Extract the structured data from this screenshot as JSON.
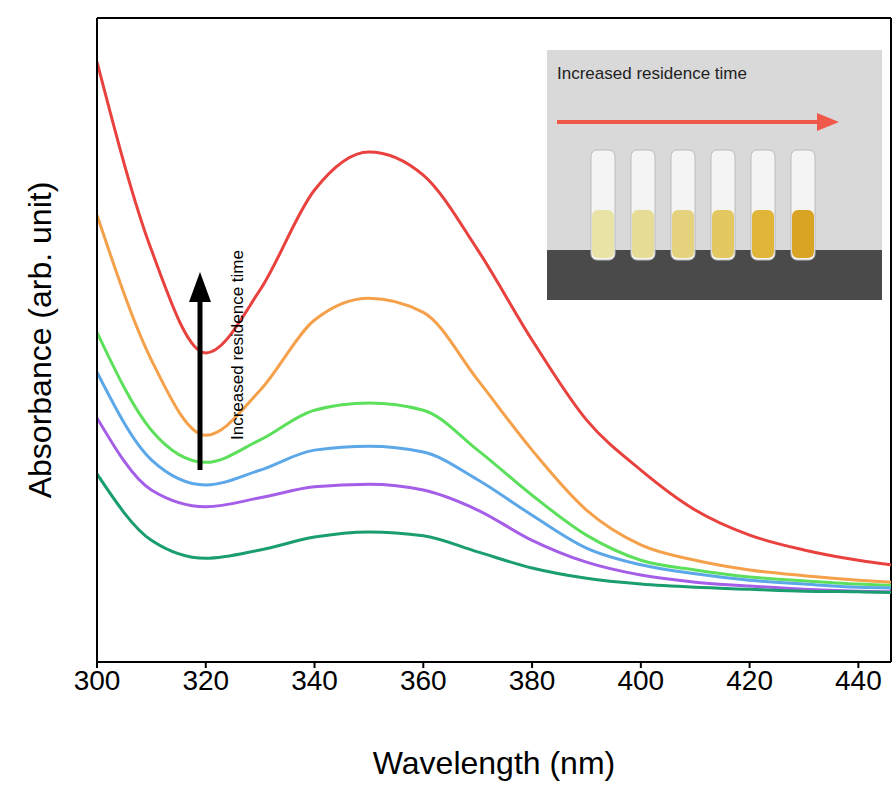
{
  "chart_data": {
    "type": "line",
    "x_label": "Wavelength (nm)",
    "y_label": "Absorbance (arb. unit)",
    "x": [
      300,
      310,
      320,
      330,
      340,
      350,
      360,
      370,
      380,
      390,
      400,
      410,
      420,
      430,
      440,
      446
    ],
    "xlim": [
      300,
      446
    ],
    "xticks": [
      300,
      320,
      340,
      360,
      380,
      400,
      420,
      440
    ],
    "ylim": [
      0,
      1
    ],
    "tick_labels": "x",
    "grid": false,
    "series": [
      {
        "color": "#e8413e",
        "values": [
          0.932,
          0.64,
          0.48,
          0.578,
          0.733,
          0.792,
          0.756,
          0.64,
          0.5,
          0.376,
          0.298,
          0.236,
          0.197,
          0.174,
          0.158,
          0.151
        ]
      },
      {
        "color": "#f5a04a",
        "values": [
          0.694,
          0.469,
          0.352,
          0.422,
          0.531,
          0.565,
          0.543,
          0.438,
          0.329,
          0.236,
          0.182,
          0.158,
          0.143,
          0.134,
          0.127,
          0.124
        ]
      },
      {
        "color": "#5ce05c",
        "values": [
          0.512,
          0.36,
          0.31,
          0.345,
          0.391,
          0.402,
          0.391,
          0.329,
          0.259,
          0.197,
          0.158,
          0.143,
          0.132,
          0.126,
          0.121,
          0.119
        ]
      },
      {
        "color": "#5ba7e8",
        "values": [
          0.45,
          0.314,
          0.275,
          0.298,
          0.329,
          0.335,
          0.326,
          0.283,
          0.228,
          0.177,
          0.151,
          0.137,
          0.127,
          0.121,
          0.116,
          0.115
        ]
      },
      {
        "color": "#a55ee8",
        "values": [
          0.379,
          0.267,
          0.241,
          0.255,
          0.272,
          0.276,
          0.267,
          0.236,
          0.189,
          0.155,
          0.135,
          0.124,
          0.118,
          0.113,
          0.11,
          0.109
        ]
      },
      {
        "color": "#1a9e6e",
        "values": [
          0.292,
          0.189,
          0.161,
          0.174,
          0.194,
          0.202,
          0.196,
          0.171,
          0.146,
          0.13,
          0.121,
          0.116,
          0.113,
          0.11,
          0.109,
          0.108
        ]
      }
    ],
    "annotations": [
      {
        "text": "Increased residence time"
      },
      {
        "text": "Increased residence time"
      }
    ]
  }
}
